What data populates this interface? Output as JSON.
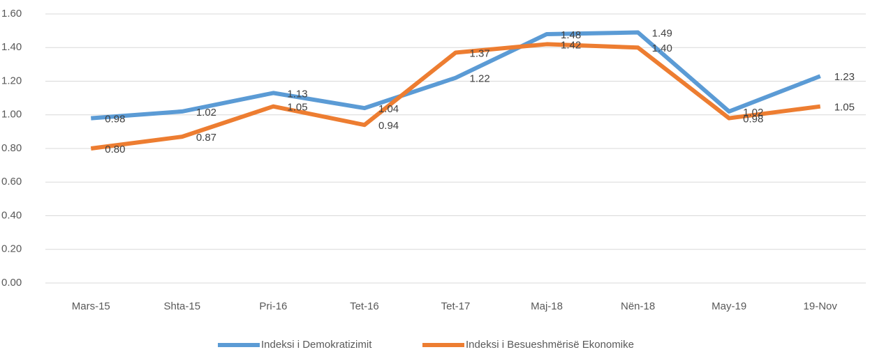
{
  "chart_data": {
    "type": "line",
    "categories": [
      "Mars-15",
      "Shta-15",
      "Pri-16",
      "Tet-16",
      "Tet-17",
      "Maj-18",
      "Nën-18",
      "May-19",
      "19-Nov"
    ],
    "series": [
      {
        "name": "Indeksi i Demokratizimit",
        "color": "#5b9bd5",
        "values": [
          0.98,
          1.02,
          1.13,
          1.04,
          1.22,
          1.48,
          1.49,
          1.02,
          1.23
        ],
        "value_labels": [
          "0.98",
          "1.02",
          "1.13",
          "1.04",
          "1.22",
          "1.48",
          "1.49",
          "1.02",
          "1.23"
        ]
      },
      {
        "name": "Indeksi i Besueshmërisë Ekonomike",
        "color": "#ed7d31",
        "values": [
          0.8,
          0.87,
          1.05,
          0.94,
          1.37,
          1.42,
          1.4,
          0.98,
          1.05
        ],
        "value_labels": [
          "0.80",
          "0.87",
          "1.05",
          "0.94",
          "1.37",
          "1.42",
          "1.40",
          "0.98",
          "1.05"
        ]
      }
    ],
    "ylim": [
      0,
      1.6
    ],
    "yticks": [
      {
        "value": 0,
        "label": "0.00"
      },
      {
        "value": 0.2,
        "label": "0.20"
      },
      {
        "value": 0.4,
        "label": "0.40"
      },
      {
        "value": 0.6,
        "label": "0.60"
      },
      {
        "value": 0.8,
        "label": "0.80"
      },
      {
        "value": 1.0,
        "label": "1.00"
      },
      {
        "value": 1.2,
        "label": "1.20"
      },
      {
        "value": 1.4,
        "label": "1.40"
      },
      {
        "value": 1.6,
        "label": "1.60"
      }
    ],
    "grid": true,
    "legend": "bottom"
  }
}
